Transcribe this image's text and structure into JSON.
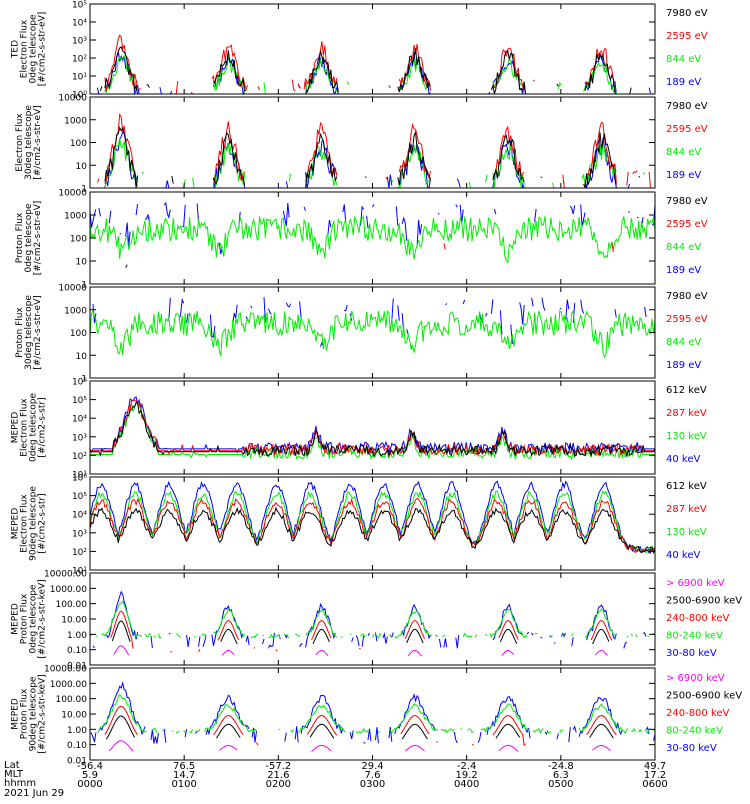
{
  "colors": {
    "black": "#000000",
    "red": "#ff0000",
    "green": "#00ee00",
    "blue": "#0000ff",
    "magenta": "#ff00ff",
    "bg": "#ffffff"
  },
  "chart_data": [
    {
      "type": "line",
      "scale": "log",
      "ylabel": [
        "TED",
        "Electron Flux",
        "0deg telescope",
        "[#/cm2-s-str-eV]"
      ],
      "ylim": [
        1,
        100000
      ],
      "yticks": [
        {
          "v": 1,
          "t": "10⁰"
        },
        {
          "v": 10,
          "t": "10¹"
        },
        {
          "v": 100,
          "t": "10²"
        },
        {
          "v": 1000,
          "t": "10³"
        },
        {
          "v": 10000,
          "t": "10⁴"
        },
        {
          "v": 100000,
          "t": "10⁵"
        }
      ],
      "series": [
        {
          "name": "7980 eV",
          "color": "#000000"
        },
        {
          "name": "2595 eV",
          "color": "#ff0000"
        },
        {
          "name": "844 eV",
          "color": "#00ee00"
        },
        {
          "name": "189 eV",
          "color": "#0000ff"
        }
      ],
      "profile": "ted_e",
      "seed": 11
    },
    {
      "type": "line",
      "scale": "log",
      "ylabel": [
        "Electron Flux",
        "30deg telescope",
        "[#/cm2-s-str-eV]"
      ],
      "ylim": [
        1,
        10000
      ],
      "yticks": [
        {
          "v": 1,
          "t": "1"
        },
        {
          "v": 10,
          "t": "10"
        },
        {
          "v": 100,
          "t": "100"
        },
        {
          "v": 1000,
          "t": "1000"
        },
        {
          "v": 10000,
          "t": "10000"
        }
      ],
      "series": [
        {
          "name": "7980 eV",
          "color": "#000000"
        },
        {
          "name": "2595 eV",
          "color": "#ff0000"
        },
        {
          "name": "844 eV",
          "color": "#00ee00"
        },
        {
          "name": "189 eV",
          "color": "#0000ff"
        }
      ],
      "profile": "ted_e",
      "seed": 23
    },
    {
      "type": "line",
      "scale": "log",
      "ylabel": [
        "Proton Flux",
        "0deg telescope",
        "[#/cm2-s-str-eV]"
      ],
      "ylim": [
        1,
        10000
      ],
      "yticks": [
        {
          "v": 1,
          "t": "1"
        },
        {
          "v": 10,
          "t": "10"
        },
        {
          "v": 100,
          "t": "100"
        },
        {
          "v": 1000,
          "t": "1000"
        },
        {
          "v": 10000,
          "t": "10000"
        }
      ],
      "series": [
        {
          "name": "7980 eV",
          "color": "#000000"
        },
        {
          "name": "2595 eV",
          "color": "#ff0000"
        },
        {
          "name": "844 eV",
          "color": "#00ee00"
        },
        {
          "name": "189 eV",
          "color": "#0000ff"
        }
      ],
      "profile": "ted_p",
      "seed": 37
    },
    {
      "type": "line",
      "scale": "log",
      "ylabel": [
        "Proton Flux",
        "30deg telescope",
        "[#/cm2-s-str-eV]"
      ],
      "ylim": [
        1,
        10000
      ],
      "yticks": [
        {
          "v": 1,
          "t": "1"
        },
        {
          "v": 10,
          "t": "10"
        },
        {
          "v": 100,
          "t": "100"
        },
        {
          "v": 1000,
          "t": "1000"
        },
        {
          "v": 10000,
          "t": "10000"
        }
      ],
      "series": [
        {
          "name": "7980 eV",
          "color": "#000000"
        },
        {
          "name": "2595 eV",
          "color": "#ff0000"
        },
        {
          "name": "844 eV",
          "color": "#00ee00"
        },
        {
          "name": "189 eV",
          "color": "#0000ff"
        }
      ],
      "profile": "ted_p",
      "seed": 41
    },
    {
      "type": "line",
      "scale": "log",
      "ylabel": [
        "MEPED",
        "Electron Flux",
        "0deg telescope",
        "[#/cm2-s-str]"
      ],
      "ylim": [
        10,
        1000000
      ],
      "yticks": [
        {
          "v": 10,
          "t": "10¹"
        },
        {
          "v": 100,
          "t": "10²"
        },
        {
          "v": 1000,
          "t": "10³"
        },
        {
          "v": 10000,
          "t": "10⁴"
        },
        {
          "v": 100000,
          "t": "10⁵"
        },
        {
          "v": 1000000,
          "t": "10⁶"
        }
      ],
      "series": [
        {
          "name": "612 keV",
          "color": "#000000"
        },
        {
          "name": "287 keV",
          "color": "#ff0000"
        },
        {
          "name": "130 keV",
          "color": "#00ee00"
        },
        {
          "name": "40 keV",
          "color": "#0000ff"
        }
      ],
      "profile": "mep_e0",
      "seed": 53
    },
    {
      "type": "line",
      "scale": "log",
      "ylabel": [
        "MEPED",
        "Electron Flux",
        "90deg telescope",
        "[#/cm2-s-str]"
      ],
      "ylim": [
        10,
        1000000
      ],
      "yticks": [
        {
          "v": 10,
          "t": "10¹"
        },
        {
          "v": 100,
          "t": "10²"
        },
        {
          "v": 1000,
          "t": "10³"
        },
        {
          "v": 10000,
          "t": "10⁴"
        },
        {
          "v": 100000,
          "t": "10⁵"
        },
        {
          "v": 1000000,
          "t": "10⁶"
        }
      ],
      "series": [
        {
          "name": "612 keV",
          "color": "#000000"
        },
        {
          "name": "287 keV",
          "color": "#ff0000"
        },
        {
          "name": "130 keV",
          "color": "#00ee00"
        },
        {
          "name": "40 keV",
          "color": "#0000ff"
        }
      ],
      "profile": "mep_e90",
      "seed": 67
    },
    {
      "type": "line",
      "scale": "log",
      "ylabel": [
        "MEPED",
        "Proton Flux",
        "0deg telescope",
        "[#/cm2-s-str-keV]"
      ],
      "ylim": [
        0.01,
        10000
      ],
      "yticks": [
        {
          "v": 0.01,
          "t": "0.01"
        },
        {
          "v": 0.1,
          "t": "0.10"
        },
        {
          "v": 1,
          "t": "1.00"
        },
        {
          "v": 10,
          "t": "10.00"
        },
        {
          "v": 100,
          "t": "100.00"
        },
        {
          "v": 1000,
          "t": "1000.00"
        },
        {
          "v": 10000,
          "t": "10000.00"
        }
      ],
      "series": [
        {
          "name": "> 6900 keV",
          "color": "#ff00ff"
        },
        {
          "name": "2500-6900 keV",
          "color": "#000000"
        },
        {
          "name": "240-800 keV",
          "color": "#ff0000"
        },
        {
          "name": "80-240 keV",
          "color": "#00ee00"
        },
        {
          "name": "30-80 keV",
          "color": "#0000ff"
        }
      ],
      "profile": "mep_p0",
      "seed": 79
    },
    {
      "type": "line",
      "scale": "log",
      "ylabel": [
        "MEPED",
        "Proton Flux",
        "90deg telescope",
        "[#/cm2-s-str-keV]"
      ],
      "ylim": [
        0.01,
        10000
      ],
      "yticks": [
        {
          "v": 0.01,
          "t": "0.01"
        },
        {
          "v": 0.1,
          "t": "0.10"
        },
        {
          "v": 1,
          "t": "1.00"
        },
        {
          "v": 10,
          "t": "10.00"
        },
        {
          "v": 100,
          "t": "100.00"
        },
        {
          "v": 1000,
          "t": "1000.00"
        },
        {
          "v": 10000,
          "t": "10000.00"
        }
      ],
      "series": [
        {
          "name": "> 6900 keV",
          "color": "#ff00ff"
        },
        {
          "name": "2500-6900 keV",
          "color": "#000000"
        },
        {
          "name": "240-800 keV",
          "color": "#ff0000"
        },
        {
          "name": "80-240 keV",
          "color": "#00ee00"
        },
        {
          "name": "30-80 keV",
          "color": "#0000ff"
        }
      ],
      "profile": "mep_p90",
      "seed": 97
    }
  ],
  "x_axis": {
    "range_hhmm": [
      "0000",
      "0600"
    ],
    "ticks": [
      {
        "lat": "-56.4",
        "mlt": "5.9",
        "hhmm": "0000"
      },
      {
        "lat": "76.5",
        "mlt": "14.7",
        "hhmm": "0100"
      },
      {
        "lat": "-57.2",
        "mlt": "21.6",
        "hhmm": "0200"
      },
      {
        "lat": "29.4",
        "mlt": "7.6",
        "hhmm": "0300"
      },
      {
        "lat": "-2.4",
        "mlt": "19.2",
        "hhmm": "0400"
      },
      {
        "lat": "-24.8",
        "mlt": "6.3",
        "hhmm": "0500"
      },
      {
        "lat": "49.7",
        "mlt": "17.2",
        "hhmm": "0600"
      }
    ]
  },
  "footer": {
    "lat_label": "Lat",
    "mlt_label": "MLT",
    "time_label": "hhmm",
    "date": "2021 Jun 29"
  }
}
